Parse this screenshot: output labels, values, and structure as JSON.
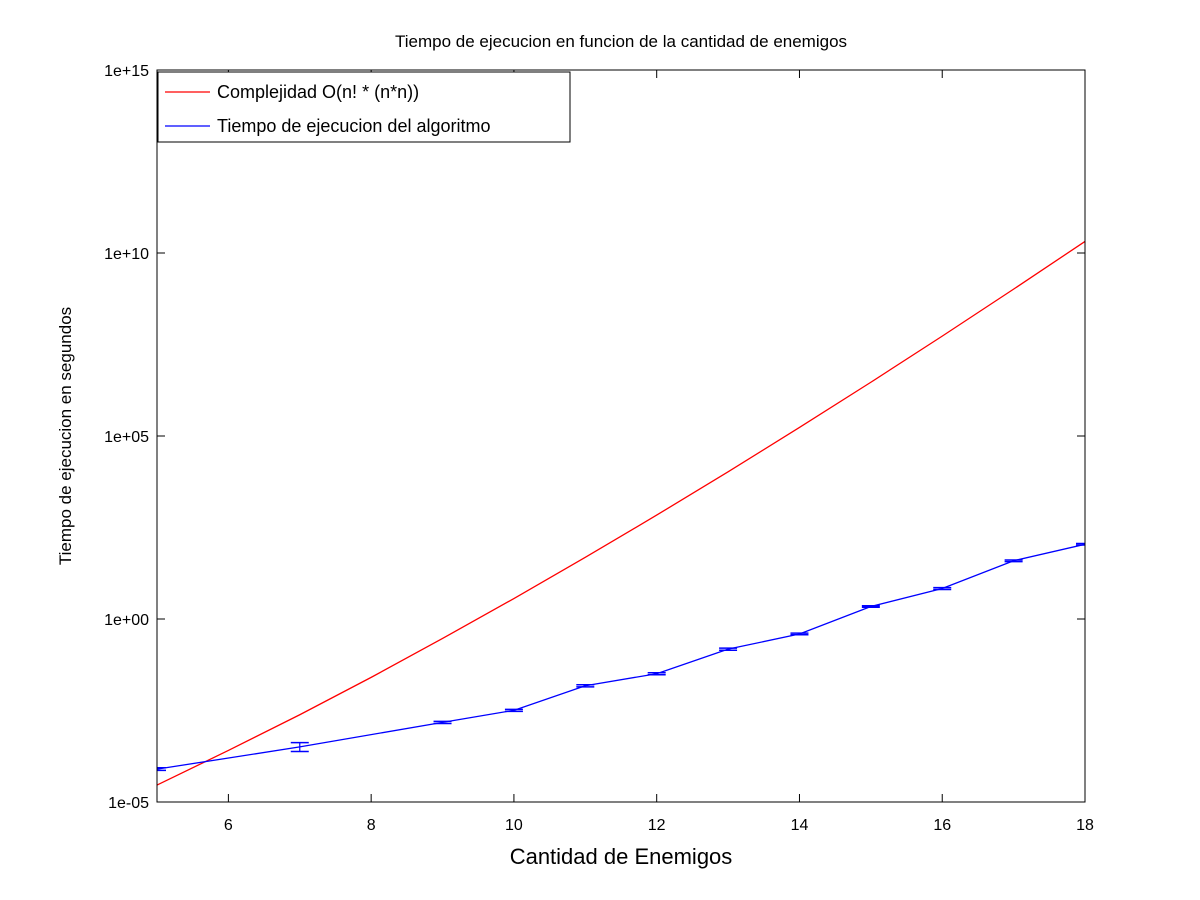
{
  "chart_data": {
    "type": "line",
    "title": "Tiempo de ejecucion en funcion de la cantidad de enemigos",
    "xlabel": "Cantidad de Enemigos",
    "ylabel": "Tiempo de ejecucion en segundos",
    "xlim": [
      5,
      18
    ],
    "ylim": [
      1e-05,
      1000000000000000.0
    ],
    "yscale": "log",
    "xticks": [
      6,
      8,
      10,
      12,
      14,
      16,
      18
    ],
    "xtick_labels": [
      "6",
      "8",
      "10",
      "12",
      "14",
      "16",
      "18"
    ],
    "yticks": [
      1e-05,
      1,
      100000,
      10000000000,
      1000000000000000.0
    ],
    "ytick_labels": [
      "1e-05",
      "1e+00",
      "1e+05",
      "1e+10",
      "1e+15"
    ],
    "grid": false,
    "legend_position": "top-left",
    "series": [
      {
        "name": "Complejidad O(n! * (n*n))",
        "color": "#ff0000",
        "kind": "line",
        "x": [
          5,
          6,
          7,
          8,
          9,
          10,
          11,
          12,
          13,
          14,
          15,
          16,
          17,
          18
        ],
        "y": [
          2.9e-05,
          0.000256,
          0.00242,
          0.0254,
          0.294,
          3.63,
          48.3,
          690,
          10500,
          171000,
          2940000,
          53600000,
          1030000000,
          20700000000
        ]
      },
      {
        "name": "Tiempo de ejecucion del algoritmo",
        "color": "#0000ff",
        "kind": "errorbar",
        "x": [
          5,
          7,
          9,
          10,
          11,
          12,
          13,
          14,
          15,
          16,
          17,
          18
        ],
        "y": [
          7.9e-05,
          0.00032,
          0.0015,
          0.0032,
          0.015,
          0.032,
          0.15,
          0.39,
          2.2,
          6.8,
          39,
          110
        ],
        "err_low": [
          7.3e-05,
          0.00024,
          0.0014,
          0.003,
          0.014,
          0.03,
          0.14,
          0.37,
          2.1,
          6.4,
          37,
          105
        ],
        "err_high": [
          8.6e-05,
          0.00042,
          0.0016,
          0.0034,
          0.016,
          0.034,
          0.16,
          0.41,
          2.3,
          7.2,
          41,
          116
        ]
      }
    ]
  }
}
